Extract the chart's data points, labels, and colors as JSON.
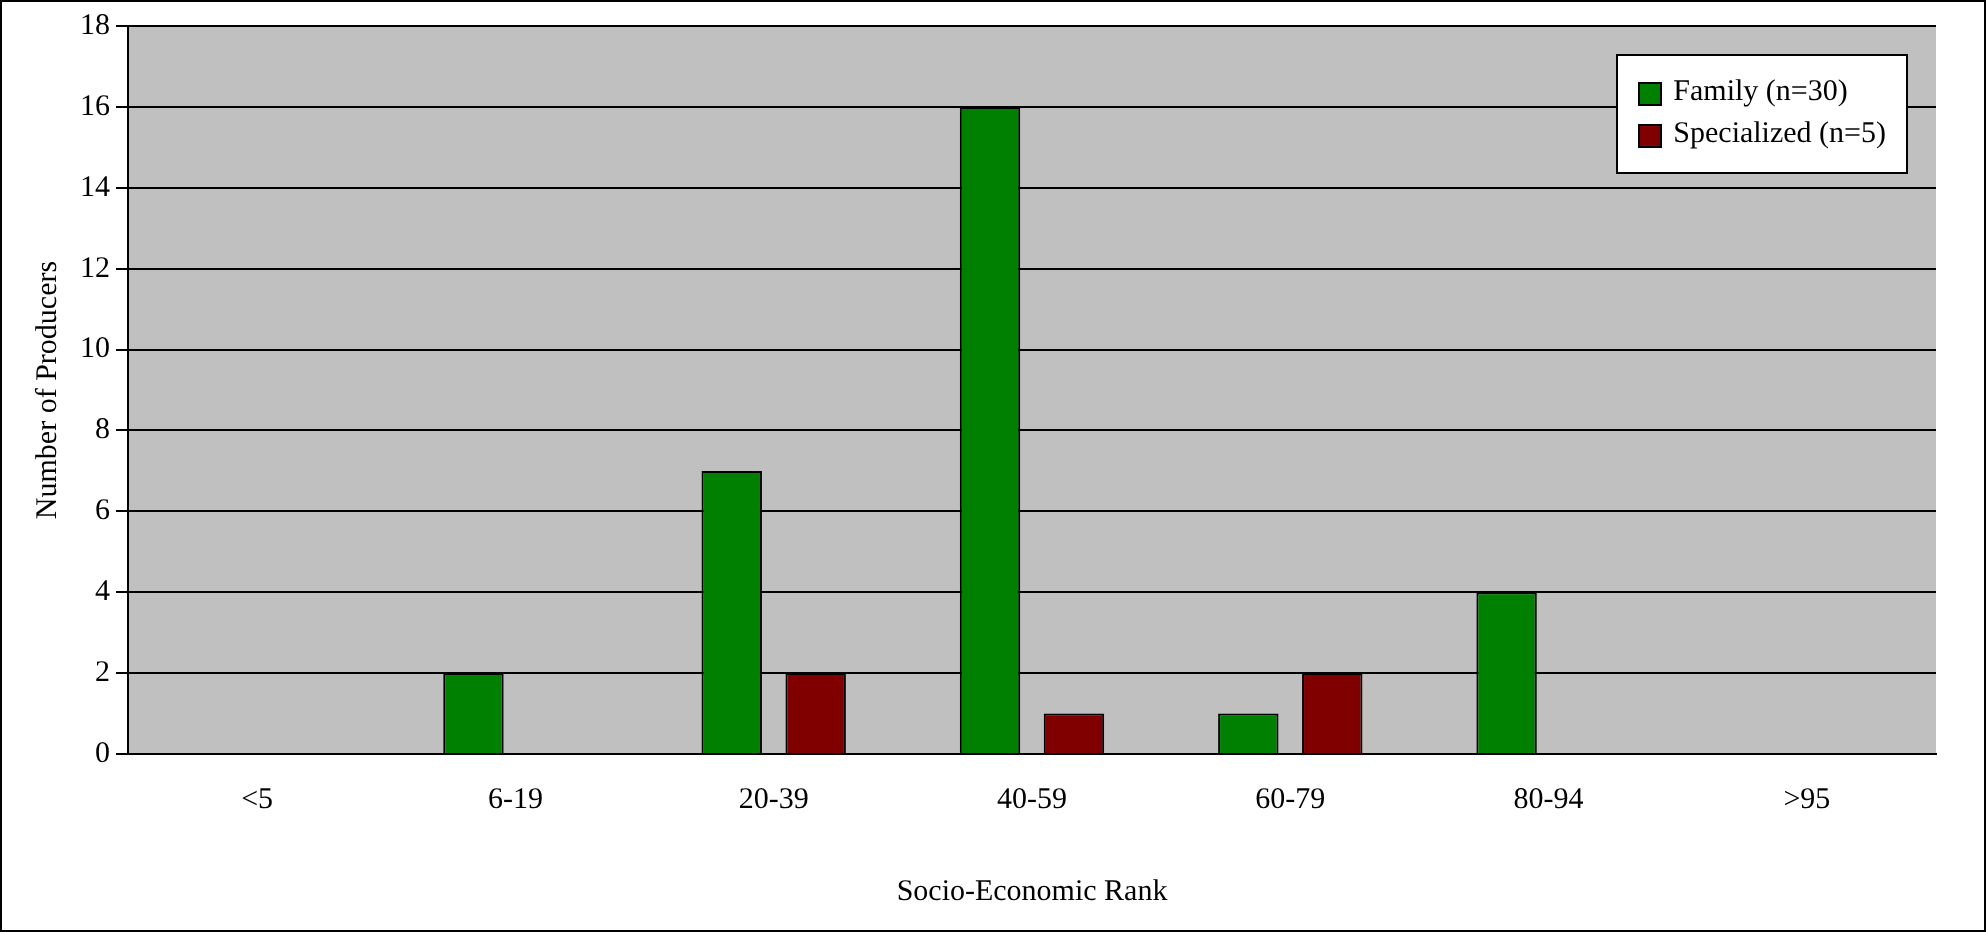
{
  "chart_data": {
    "type": "bar",
    "xlabel": "Socio-Economic Rank",
    "ylabel": "Number of Producers",
    "categories": [
      "<5",
      "6-19",
      "20-39",
      "40-59",
      "60-79",
      "80-94",
      ">95"
    ],
    "series": [
      {
        "name": "Family (n=30)",
        "color": "#008000",
        "values": [
          0,
          2,
          7,
          16,
          1,
          4,
          0
        ]
      },
      {
        "name": "Specialized (n=5)",
        "color": "#800000",
        "values": [
          0,
          0,
          2,
          1,
          2,
          0,
          0
        ]
      }
    ],
    "ylim": [
      0,
      18
    ],
    "yticks": [
      0,
      2,
      4,
      6,
      8,
      10,
      12,
      14,
      16,
      18
    ],
    "grid": "y",
    "legend": "top right"
  }
}
